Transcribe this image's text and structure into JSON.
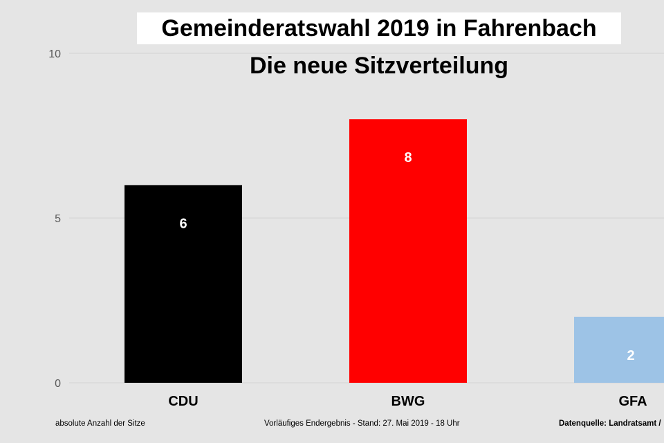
{
  "header": {
    "title": "Gemeinderatswahl 2019 in Fahrenbach",
    "subtitle": "Die neue Sitzverteilung"
  },
  "footer": {
    "left": "absolute Anzahl der Sitze",
    "center": "Vorläufiges Endergebnis - Stand: 27. Mai 2019  - 18 Uhr",
    "right": "Datenquelle: Landratsamt /"
  },
  "colors": {
    "background": "#e5e5e5",
    "CDU": "#000000",
    "BWG": "#ff0000",
    "GFA": "#9dc3e6",
    "gridline": "#d4d4d4"
  },
  "chart_data": {
    "type": "bar",
    "title": "Gemeinderatswahl 2019 in Fahrenbach",
    "subtitle": "Die neue Sitzverteilung",
    "categories": [
      "CDU",
      "BWG",
      "GFA"
    ],
    "values": [
      6,
      8,
      2
    ],
    "data_labels": [
      "6",
      "8",
      "2"
    ],
    "colors": [
      "#000000",
      "#ff0000",
      "#9dc3e6"
    ],
    "xlabel": "",
    "ylabel": "",
    "ylim": [
      0,
      10
    ],
    "yticks": [
      0,
      5,
      10
    ],
    "ytick_labels": [
      "0",
      "5",
      "10"
    ],
    "grid": true,
    "legend": "none"
  }
}
